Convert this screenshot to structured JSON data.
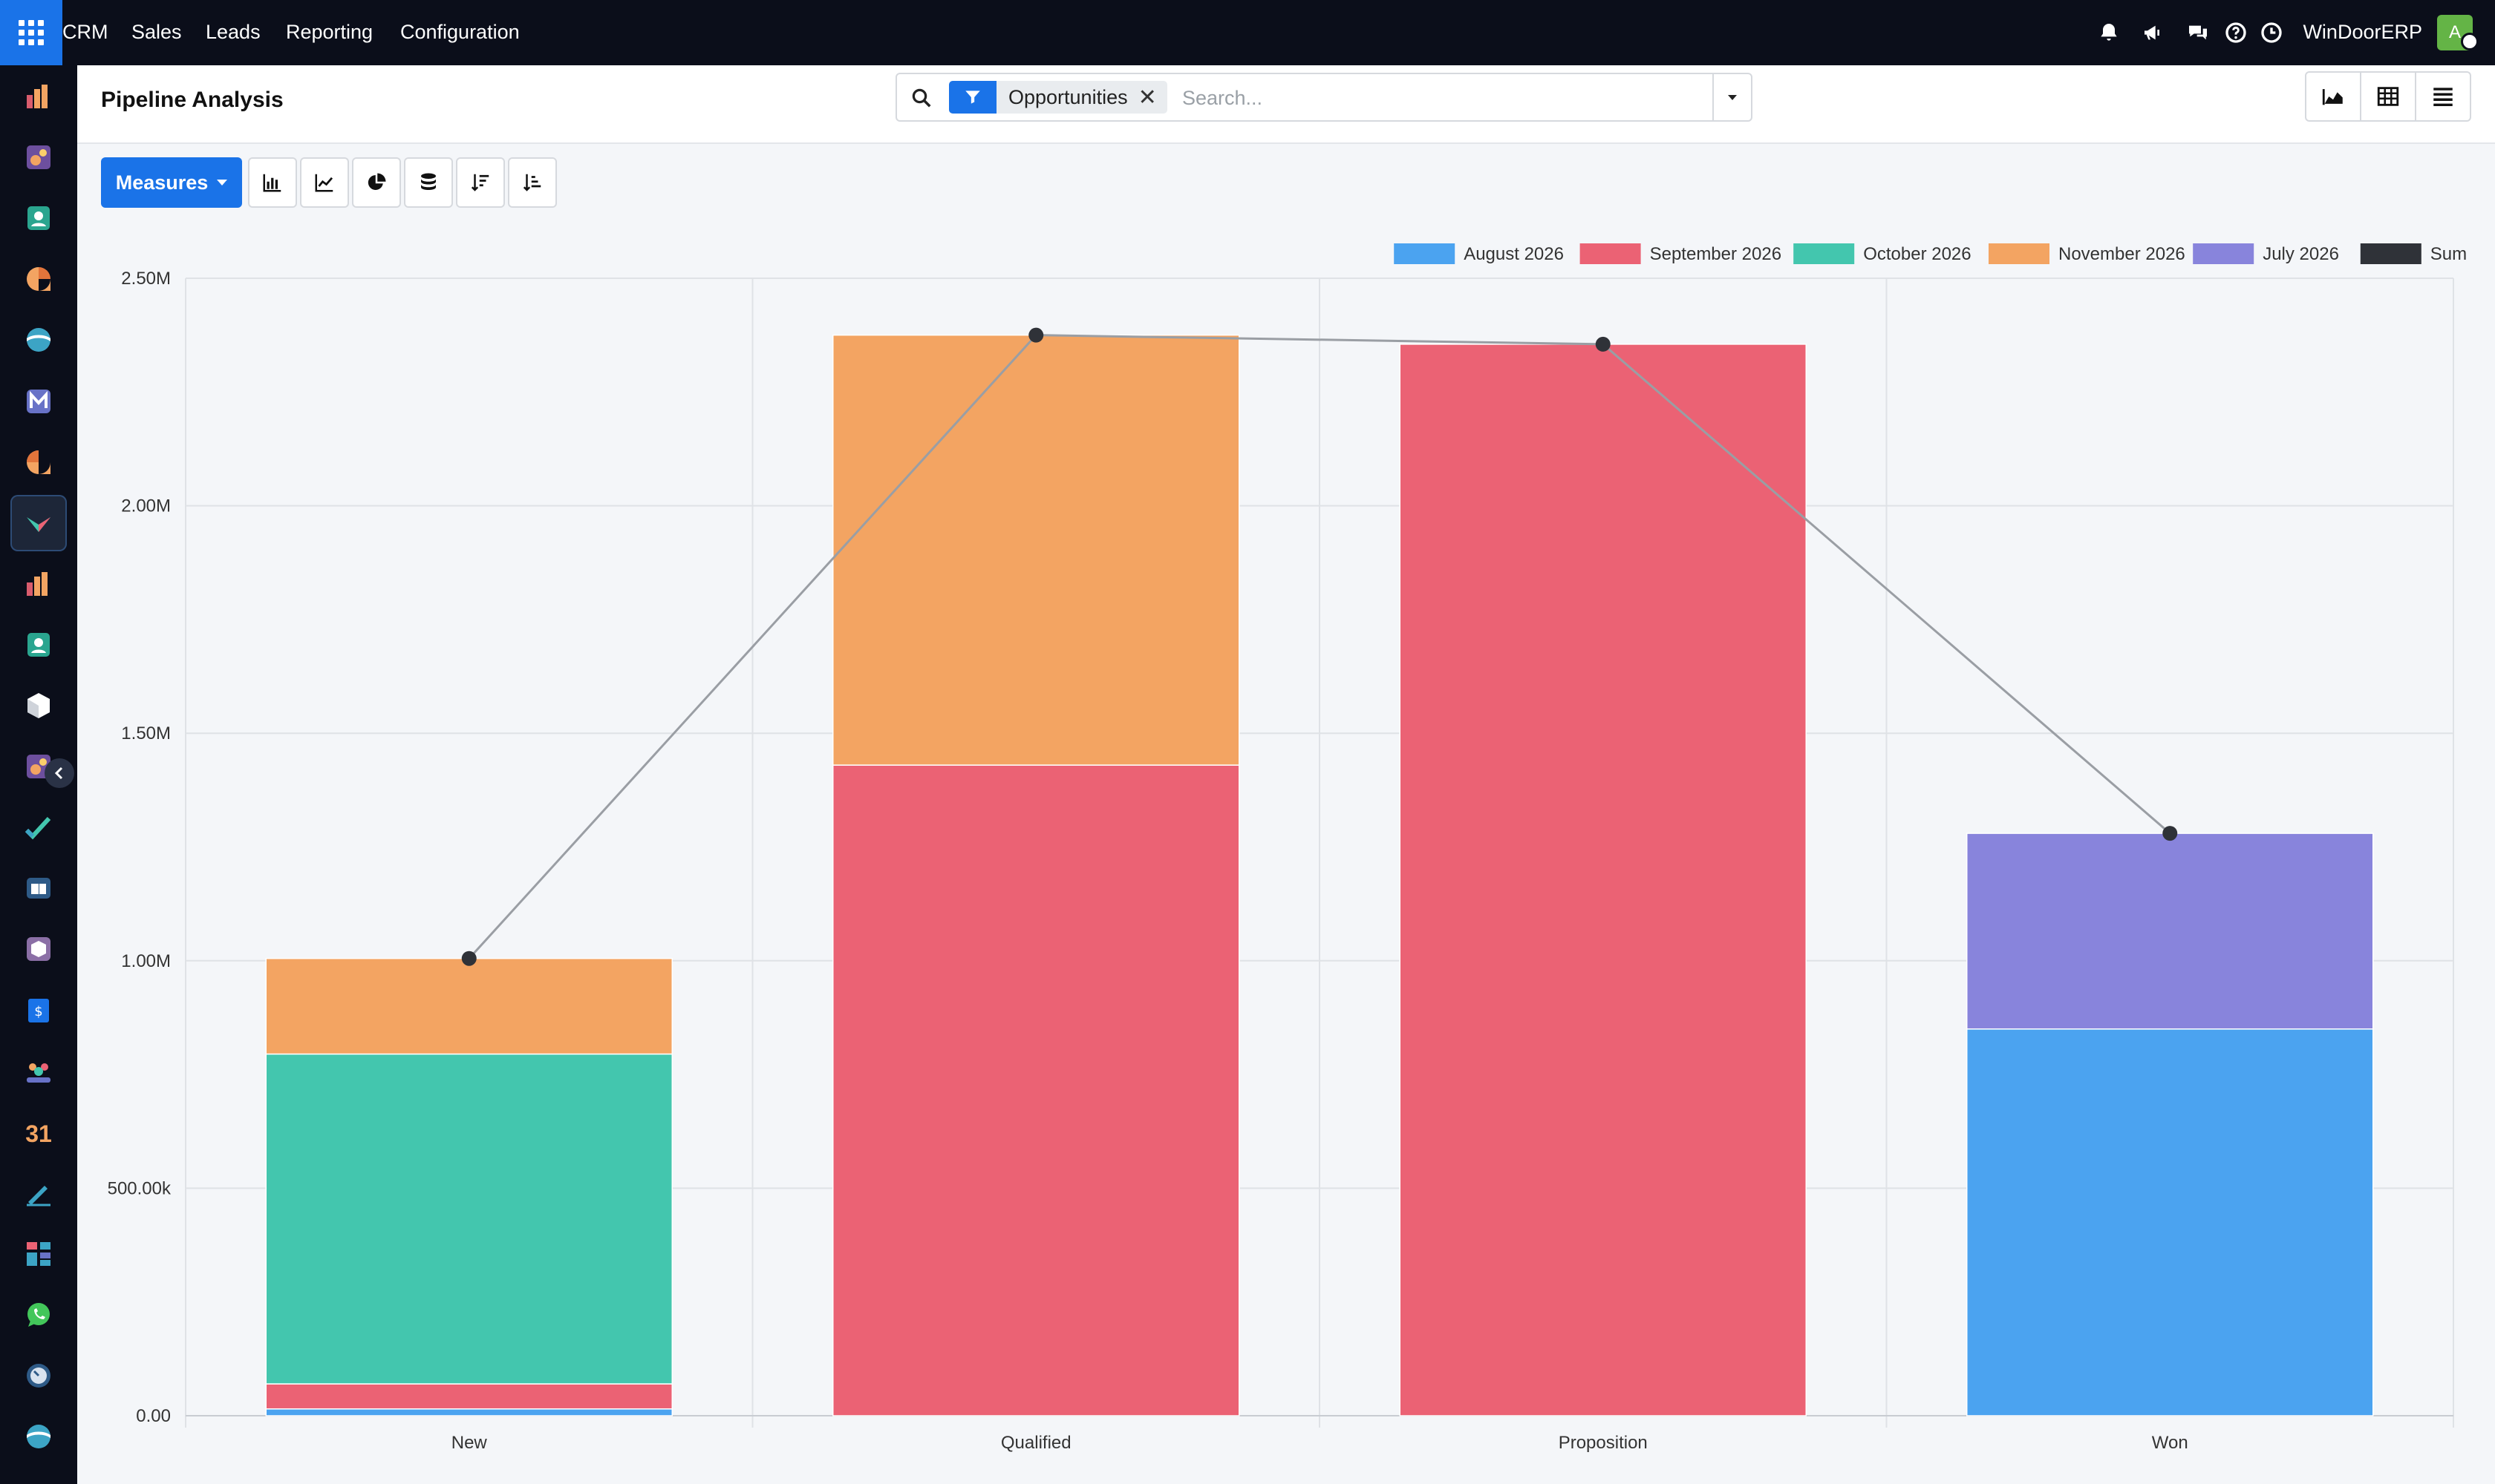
{
  "navbar": {
    "menus": [
      "CRM",
      "Sales",
      "Leads",
      "Reporting",
      "Configuration"
    ],
    "icons": [
      "bell-icon",
      "megaphone-icon",
      "chat-icon",
      "help-icon",
      "clock-icon"
    ],
    "company": "WinDoorERP",
    "avatar_initial": "A"
  },
  "sidebar": {
    "items": [
      "dashboard-icon",
      "documents-icon",
      "contacts-icon",
      "discuss-icon",
      "odoo-icon",
      "email-marketing-icon",
      "livechat-icon",
      "crm-icon",
      "dashboard-icon",
      "contacts-icon",
      "inventory-icon",
      "documents-icon",
      "todo-icon",
      "knowledge-icon",
      "inventory-box-icon",
      "invoicing-icon",
      "employees-icon",
      "calendar-icon",
      "sign-icon",
      "spreadsheet-icon",
      "whatsapp-icon",
      "timesheets-icon",
      "odoo-icon"
    ],
    "active_index": 7
  },
  "control_panel": {
    "title": "Pipeline Analysis",
    "facet": "Opportunities",
    "search_placeholder": "Search..."
  },
  "toolbar": {
    "measures_label": "Measures"
  },
  "chart_data": {
    "type": "bar",
    "stacked": true,
    "categories": [
      "New",
      "Qualified",
      "Proposition",
      "Won"
    ],
    "series": [
      {
        "name": "August 2026",
        "color": "#4ba3f0",
        "values": [
          15000,
          0,
          0,
          850000
        ]
      },
      {
        "name": "September 2026",
        "color": "#eb6274",
        "values": [
          55000,
          1430000,
          2355000,
          0
        ]
      },
      {
        "name": "October 2026",
        "color": "#43c6ae",
        "values": [
          725000,
          0,
          0,
          0
        ]
      },
      {
        "name": "November 2026",
        "color": "#f3a462",
        "values": [
          210000,
          945000,
          0,
          0
        ]
      },
      {
        "name": "July 2026",
        "color": "#8884dc",
        "values": [
          0,
          0,
          0,
          430000
        ]
      }
    ],
    "sum": {
      "name": "Sum",
      "color": "#2f3238",
      "values": [
        1005000,
        2375000,
        2355000,
        1280000
      ]
    },
    "yticks": [
      "0.00",
      "500.00k",
      "1.00M",
      "1.50M",
      "2.00M",
      "2.50M"
    ],
    "ylim": [
      0,
      2500000
    ],
    "grid": true,
    "legend_position": "top-right"
  }
}
